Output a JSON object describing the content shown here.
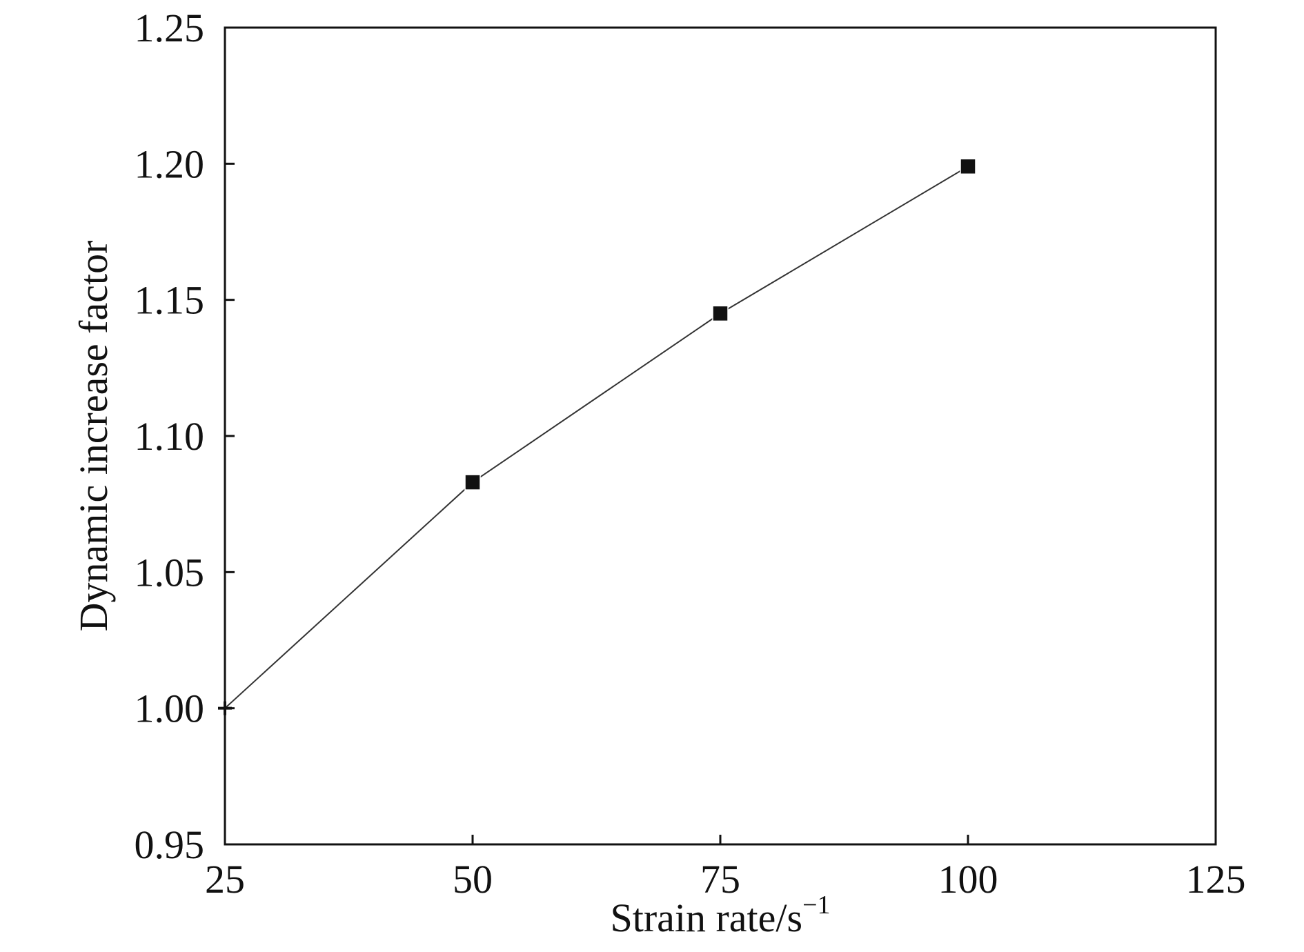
{
  "chart_data": {
    "type": "line",
    "title": "",
    "xlabel": "Strain rate/s",
    "xlabel_superscript": "−1",
    "ylabel": "Dynamic increase factor",
    "xlim": [
      25,
      125
    ],
    "ylim": [
      0.95,
      1.25
    ],
    "x_ticks": [
      "25",
      "50",
      "75",
      "100",
      "125"
    ],
    "y_ticks": [
      "0.95",
      "1.00",
      "1.05",
      "1.10",
      "1.15",
      "1.20",
      "1.25"
    ],
    "grid": false,
    "legend": "none",
    "series": [
      {
        "x": [
          25,
          50,
          75,
          100
        ],
        "y": [
          1.0,
          1.083,
          1.145,
          1.199
        ],
        "marker": "square",
        "color": "#111111"
      }
    ]
  }
}
